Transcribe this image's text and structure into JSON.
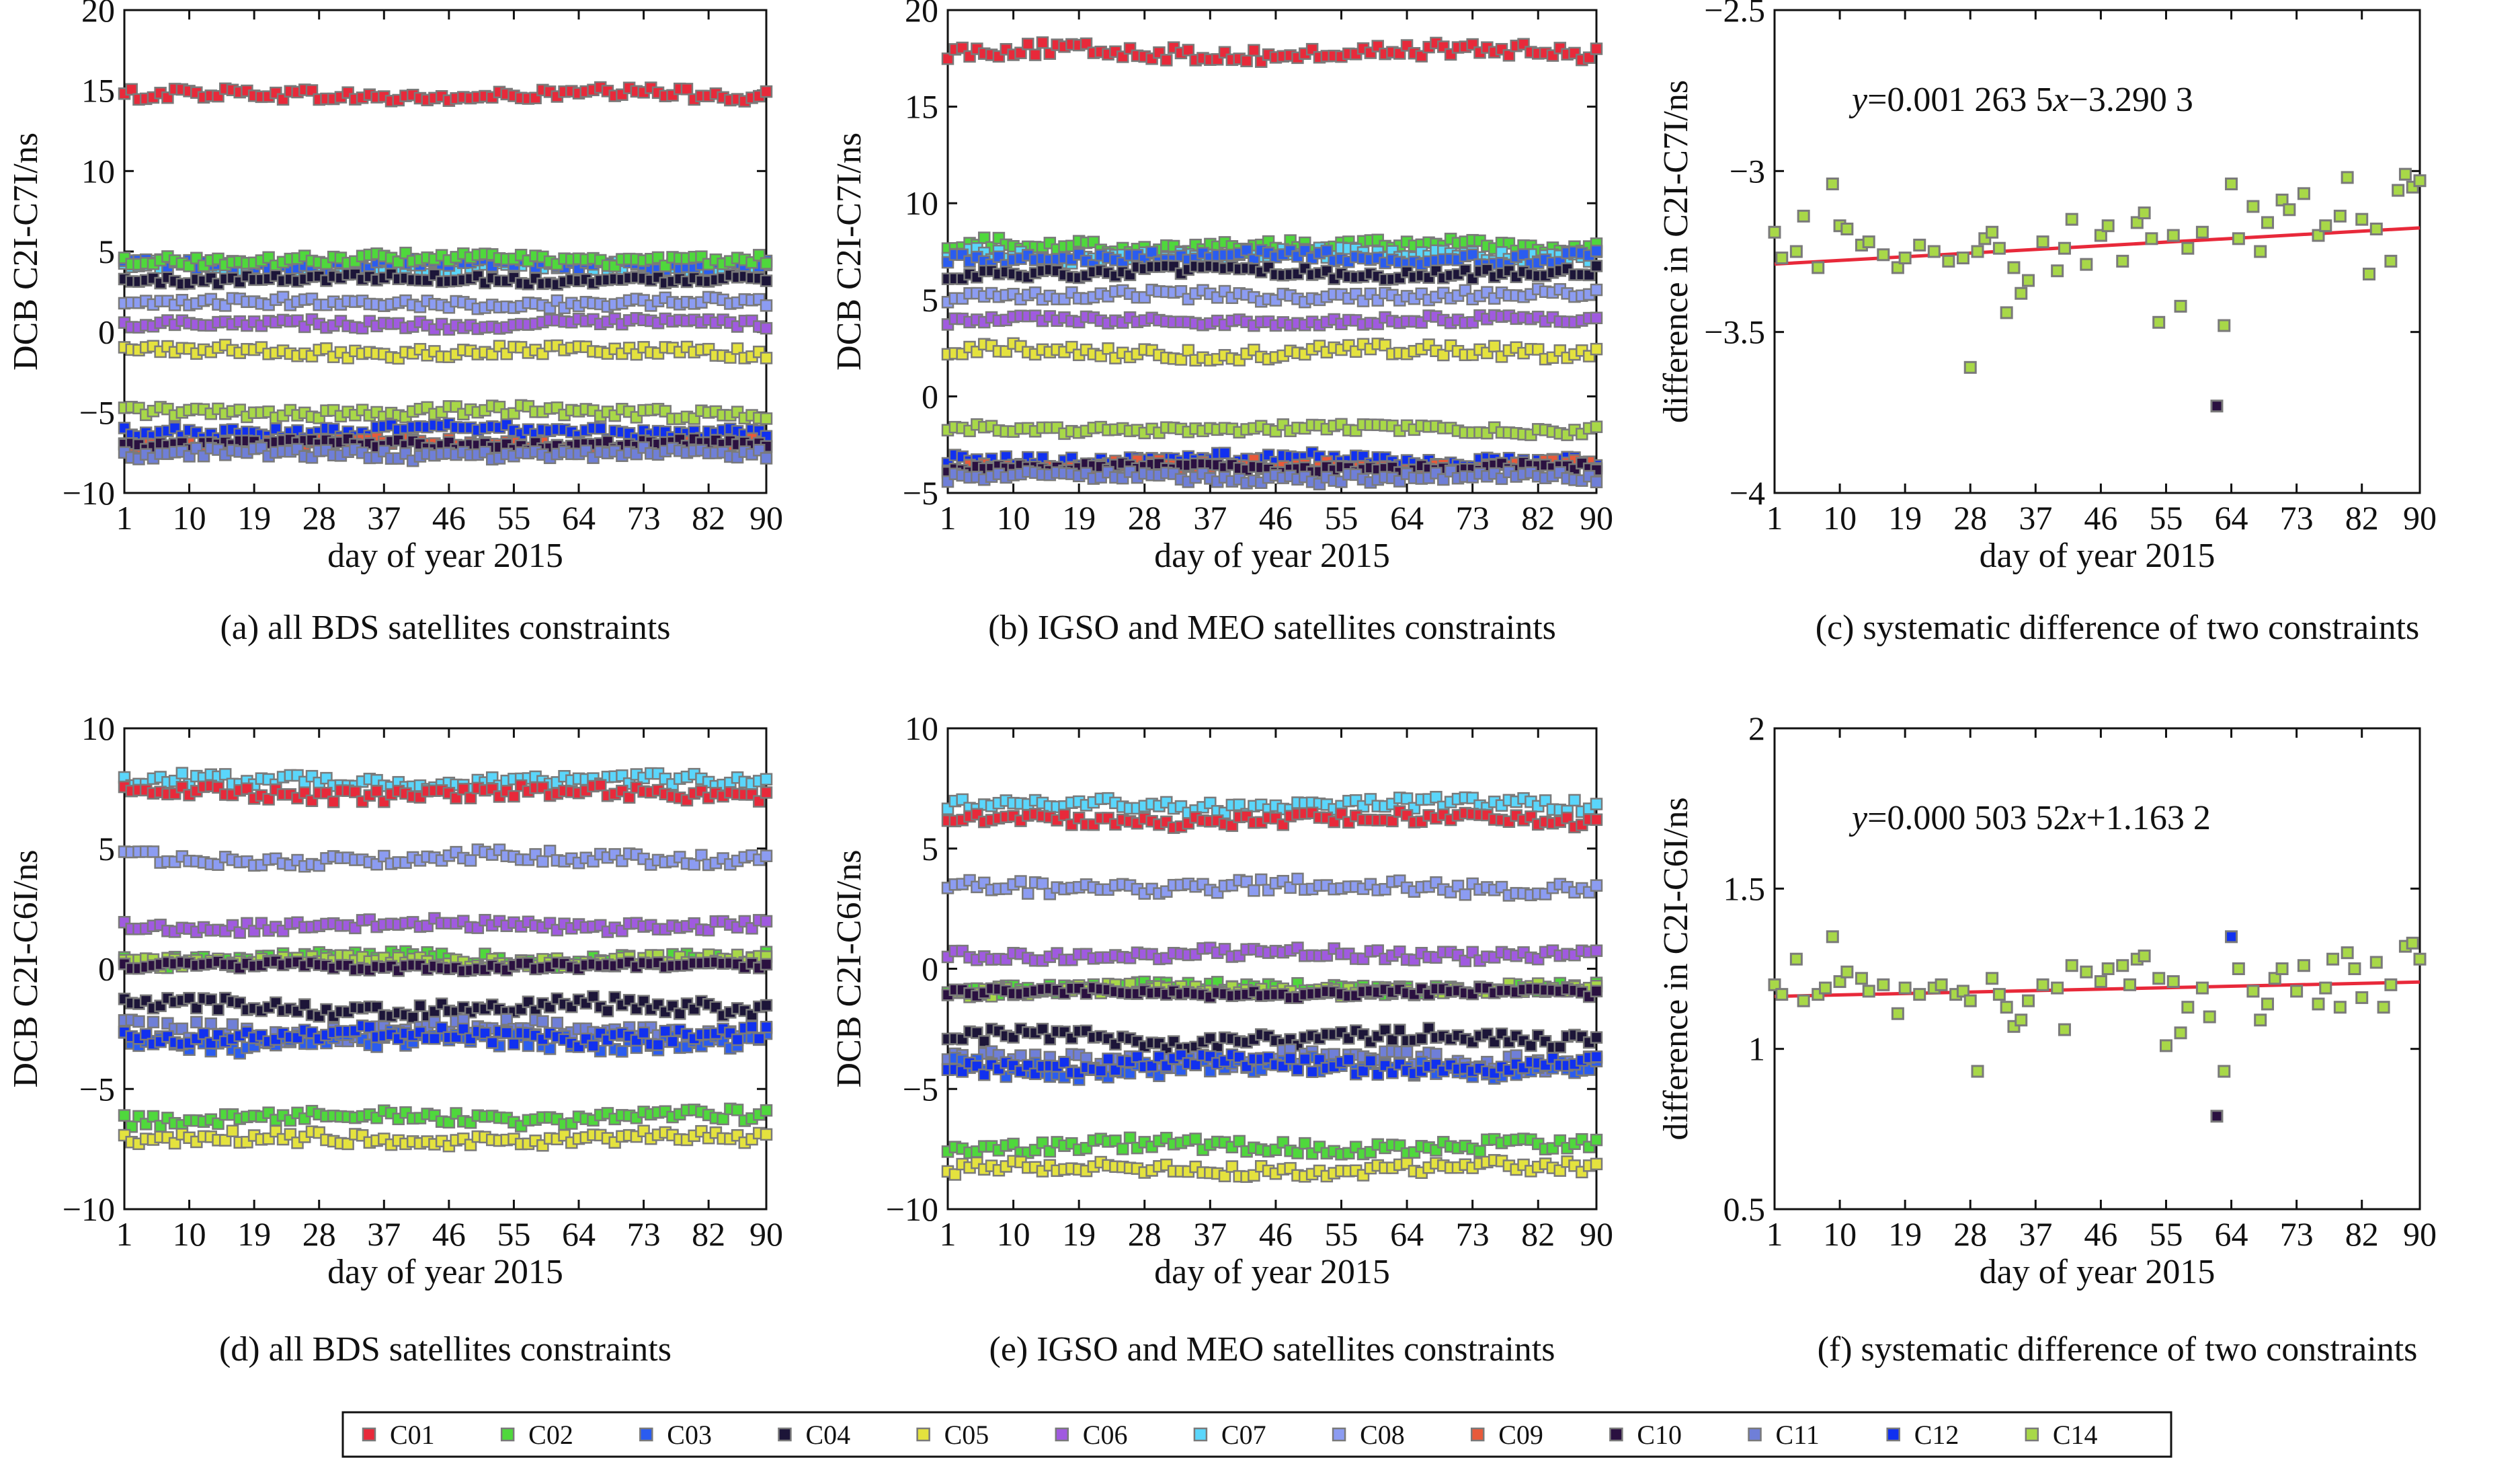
{
  "figure": {
    "legend": [
      {
        "name": "C01",
        "color": "#e8293a"
      },
      {
        "name": "C02",
        "color": "#4fd83c"
      },
      {
        "name": "C03",
        "color": "#2a5cf0"
      },
      {
        "name": "C04",
        "color": "#1c1538"
      },
      {
        "name": "C05",
        "color": "#e4e23e"
      },
      {
        "name": "C06",
        "color": "#a05ae0"
      },
      {
        "name": "C07",
        "color": "#5ad6fb"
      },
      {
        "name": "C08",
        "color": "#8c9cf2"
      },
      {
        "name": "C09",
        "color": "#e85a3a"
      },
      {
        "name": "C10",
        "color": "#2a1040"
      },
      {
        "name": "C11",
        "color": "#6f7fd8"
      },
      {
        "name": "C12",
        "color": "#1030f0"
      },
      {
        "name": "C14",
        "color": "#a8d848"
      }
    ],
    "trend_color": "#e8293a",
    "marker_edge_color": "#7a7a7a"
  },
  "chart_data": [
    {
      "id": "a",
      "type": "scatter",
      "caption": "(a) all BDS satellites constraints",
      "xlabel": "day of year 2015",
      "ylabel": "DCB C2I-C7I/ns",
      "xlim": [
        1,
        90
      ],
      "ylim": [
        -10,
        20
      ],
      "xticks": [
        "1",
        "10",
        "19",
        "28",
        "37",
        "46",
        "55",
        "64",
        "73",
        "82",
        "90"
      ],
      "yticks": [
        "20",
        "15",
        "10",
        "5",
        "0",
        "−5",
        "−10"
      ],
      "series": [
        {
          "name": "C01",
          "mean": 14.7,
          "noise": 0.35
        },
        {
          "name": "C07",
          "mean": 4.0,
          "noise": 0.35
        },
        {
          "name": "C03",
          "mean": 4.2,
          "noise": 0.3
        },
        {
          "name": "C02",
          "mean": 4.5,
          "noise": 0.3
        },
        {
          "name": "C04",
          "mean": 3.3,
          "noise": 0.25
        },
        {
          "name": "C08",
          "mean": 1.8,
          "noise": 0.25
        },
        {
          "name": "C06",
          "mean": 0.5,
          "noise": 0.25
        },
        {
          "name": "C05",
          "mean": -1.2,
          "noise": 0.3
        },
        {
          "name": "C14",
          "mean": -5.0,
          "noise": 0.3
        },
        {
          "name": "C12",
          "mean": -6.2,
          "noise": 0.35
        },
        {
          "name": "C09",
          "mean": -7.0,
          "noise": 0.3
        },
        {
          "name": "C10",
          "mean": -7.0,
          "noise": 0.25
        },
        {
          "name": "C11",
          "mean": -7.6,
          "noise": 0.3
        }
      ]
    },
    {
      "id": "b",
      "type": "scatter",
      "caption": "(b) IGSO and MEO satellites constraints",
      "xlabel": "day of year 2015",
      "ylabel": "DCB C2I-C7I/ns",
      "xlim": [
        1,
        90
      ],
      "ylim": [
        -5,
        20
      ],
      "xticks": [
        "1",
        "10",
        "19",
        "28",
        "37",
        "46",
        "55",
        "64",
        "73",
        "82",
        "90"
      ],
      "yticks": [
        "20",
        "15",
        "10",
        "5",
        "0",
        "−5"
      ],
      "series": [
        {
          "name": "C01",
          "mean": 17.8,
          "noise": 0.35
        },
        {
          "name": "C02",
          "mean": 7.8,
          "noise": 0.3
        },
        {
          "name": "C07",
          "mean": 7.3,
          "noise": 0.3
        },
        {
          "name": "C03",
          "mean": 7.2,
          "noise": 0.3
        },
        {
          "name": "C04",
          "mean": 6.4,
          "noise": 0.25
        },
        {
          "name": "C08",
          "mean": 5.2,
          "noise": 0.25
        },
        {
          "name": "C06",
          "mean": 3.9,
          "noise": 0.2
        },
        {
          "name": "C05",
          "mean": 2.3,
          "noise": 0.3
        },
        {
          "name": "C14",
          "mean": -1.7,
          "noise": 0.2
        },
        {
          "name": "C12",
          "mean": -3.3,
          "noise": 0.3
        },
        {
          "name": "C09",
          "mean": -3.6,
          "noise": 0.25
        },
        {
          "name": "C10",
          "mean": -3.7,
          "noise": 0.2
        },
        {
          "name": "C11",
          "mean": -4.2,
          "noise": 0.25
        }
      ]
    },
    {
      "id": "c",
      "type": "scatter",
      "caption": "(c) systematic difference of two constraints",
      "xlabel": "day of year 2015",
      "ylabel": "difference in C2I-C7I/ns",
      "equation": {
        "lead": "y",
        "text1": "=0.001 263 5",
        "mid": "x",
        "text2": "−3.290 3"
      },
      "xlim": [
        1,
        90
      ],
      "ylim": [
        -4,
        -2.5
      ],
      "xticks": [
        "1",
        "10",
        "19",
        "28",
        "37",
        "46",
        "55",
        "64",
        "73",
        "82",
        "90"
      ],
      "yticks": [
        "−2.5",
        "−3",
        "−3.5",
        "−4"
      ],
      "trend": {
        "slope": 0.0012635,
        "intercept": -3.2903
      },
      "points": [
        [
          1,
          -3.19
        ],
        [
          2,
          -3.27
        ],
        [
          4,
          -3.25
        ],
        [
          5,
          -3.14
        ],
        [
          7,
          -3.3
        ],
        [
          9,
          -3.04
        ],
        [
          10,
          -3.17
        ],
        [
          11,
          -3.18
        ],
        [
          13,
          -3.23
        ],
        [
          14,
          -3.22
        ],
        [
          16,
          -3.26
        ],
        [
          18,
          -3.3
        ],
        [
          19,
          -3.27
        ],
        [
          21,
          -3.23
        ],
        [
          23,
          -3.25
        ],
        [
          25,
          -3.28
        ],
        [
          27,
          -3.27
        ],
        [
          28,
          -3.61
        ],
        [
          29,
          -3.25
        ],
        [
          30,
          -3.21
        ],
        [
          31,
          -3.19
        ],
        [
          32,
          -3.24
        ],
        [
          33,
          -3.44
        ],
        [
          34,
          -3.3
        ],
        [
          35,
          -3.38
        ],
        [
          36,
          -3.34
        ],
        [
          38,
          -3.22
        ],
        [
          40,
          -3.31
        ],
        [
          41,
          -3.24
        ],
        [
          42,
          -3.15
        ],
        [
          44,
          -3.29
        ],
        [
          46,
          -3.2
        ],
        [
          47,
          -3.17
        ],
        [
          49,
          -3.28
        ],
        [
          51,
          -3.16
        ],
        [
          52,
          -3.13
        ],
        [
          53,
          -3.21
        ],
        [
          54,
          -3.47
        ],
        [
          56,
          -3.2
        ],
        [
          57,
          -3.42
        ],
        [
          58,
          -3.24
        ],
        [
          60,
          -3.19
        ],
        [
          62,
          -3.73
        ],
        [
          63,
          -3.48
        ],
        [
          64,
          -3.04
        ],
        [
          65,
          -3.21
        ],
        [
          67,
          -3.11
        ],
        [
          68,
          -3.25
        ],
        [
          69,
          -3.16
        ],
        [
          71,
          -3.09
        ],
        [
          72,
          -3.12
        ],
        [
          74,
          -3.07
        ],
        [
          76,
          -3.2
        ],
        [
          77,
          -3.17
        ],
        [
          79,
          -3.14
        ],
        [
          80,
          -3.02
        ],
        [
          82,
          -3.15
        ],
        [
          83,
          -3.32
        ],
        [
          84,
          -3.18
        ],
        [
          86,
          -3.28
        ],
        [
          87,
          -3.06
        ],
        [
          88,
          -3.01
        ],
        [
          89,
          -3.05
        ],
        [
          90,
          -3.03
        ]
      ],
      "outliers": [
        [
          62,
          -3.73
        ]
      ]
    },
    {
      "id": "d",
      "type": "scatter",
      "caption": "(d) all BDS satellites constraints",
      "xlabel": "day of year 2015",
      "ylabel": "DCB C2I-C6I/ns",
      "xlim": [
        1,
        90
      ],
      "ylim": [
        -10,
        10
      ],
      "xticks": [
        "1",
        "10",
        "19",
        "28",
        "37",
        "46",
        "55",
        "64",
        "73",
        "82",
        "90"
      ],
      "yticks": [
        "10",
        "5",
        "0",
        "−5",
        "−10"
      ],
      "series": [
        {
          "name": "C07",
          "mean": 7.8,
          "noise": 0.25
        },
        {
          "name": "C01",
          "mean": 7.3,
          "noise": 0.25
        },
        {
          "name": "C08",
          "mean": 4.6,
          "noise": 0.25
        },
        {
          "name": "C06",
          "mean": 1.8,
          "noise": 0.2
        },
        {
          "name": "C02",
          "mean": 0.4,
          "noise": 0.25
        },
        {
          "name": "C14",
          "mean": 0.3,
          "noise": 0.2
        },
        {
          "name": "C10",
          "mean": 0.1,
          "noise": 0.15
        },
        {
          "name": "C04",
          "mean": -1.6,
          "noise": 0.3
        },
        {
          "name": "C11",
          "mean": -2.6,
          "noise": 0.35
        },
        {
          "name": "C03",
          "mean": -3.0,
          "noise": 0.35
        },
        {
          "name": "C12",
          "mean": -2.8,
          "noise": 0.3
        },
        {
          "name": "C02",
          "mean": -6.2,
          "noise": 0.25
        },
        {
          "name": "C05",
          "mean": -7.1,
          "noise": 0.25
        }
      ]
    },
    {
      "id": "e",
      "type": "scatter",
      "caption": "(e) IGSO and MEO satellites constraints",
      "xlabel": "day of year 2015",
      "ylabel": "DCB C2I-C6I/ns",
      "xlim": [
        1,
        90
      ],
      "ylim": [
        -10,
        10
      ],
      "xticks": [
        "1",
        "10",
        "19",
        "28",
        "37",
        "46",
        "55",
        "64",
        "73",
        "82",
        "90"
      ],
      "yticks": [
        "10",
        "5",
        "0",
        "−5",
        "−10"
      ],
      "series": [
        {
          "name": "C07",
          "mean": 6.8,
          "noise": 0.25
        },
        {
          "name": "C01",
          "mean": 6.2,
          "noise": 0.25
        },
        {
          "name": "C08",
          "mean": 3.4,
          "noise": 0.25
        },
        {
          "name": "C06",
          "mean": 0.6,
          "noise": 0.2
        },
        {
          "name": "C02",
          "mean": -0.8,
          "noise": 0.2
        },
        {
          "name": "C14",
          "mean": -0.9,
          "noise": 0.2
        },
        {
          "name": "C10",
          "mean": -1.0,
          "noise": 0.15
        },
        {
          "name": "C04",
          "mean": -2.9,
          "noise": 0.3
        },
        {
          "name": "C11",
          "mean": -3.8,
          "noise": 0.35
        },
        {
          "name": "C03",
          "mean": -4.1,
          "noise": 0.35
        },
        {
          "name": "C12",
          "mean": -4.0,
          "noise": 0.3
        },
        {
          "name": "C02",
          "mean": -7.4,
          "noise": 0.25
        },
        {
          "name": "C05",
          "mean": -8.3,
          "noise": 0.25
        }
      ]
    },
    {
      "id": "f",
      "type": "scatter",
      "caption": "(f) systematic difference of two constraints",
      "xlabel": "day of year 2015",
      "ylabel": "difference in C2I-C6I/ns",
      "equation": {
        "lead": "y",
        "text1": "=0.000 503 52",
        "mid": "x",
        "text2": "+1.163 2"
      },
      "xlim": [
        1,
        90
      ],
      "ylim": [
        0.5,
        2
      ],
      "xticks": [
        "1",
        "10",
        "19",
        "28",
        "37",
        "46",
        "55",
        "64",
        "73",
        "82",
        "90"
      ],
      "yticks": [
        "2",
        "1.5",
        "1",
        "0.5"
      ],
      "trend": {
        "slope": 0.00050352,
        "intercept": 1.1632
      },
      "points": [
        [
          1,
          1.2
        ],
        [
          2,
          1.17
        ],
        [
          4,
          1.28
        ],
        [
          5,
          1.15
        ],
        [
          7,
          1.17
        ],
        [
          8,
          1.19
        ],
        [
          9,
          1.35
        ],
        [
          10,
          1.21
        ],
        [
          11,
          1.24
        ],
        [
          13,
          1.22
        ],
        [
          14,
          1.18
        ],
        [
          16,
          1.2
        ],
        [
          18,
          1.11
        ],
        [
          19,
          1.19
        ],
        [
          21,
          1.17
        ],
        [
          23,
          1.19
        ],
        [
          24,
          1.2
        ],
        [
          26,
          1.17
        ],
        [
          27,
          1.18
        ],
        [
          28,
          1.15
        ],
        [
          29,
          0.93
        ],
        [
          31,
          1.22
        ],
        [
          32,
          1.17
        ],
        [
          33,
          1.13
        ],
        [
          34,
          1.07
        ],
        [
          35,
          1.09
        ],
        [
          36,
          1.15
        ],
        [
          38,
          1.2
        ],
        [
          40,
          1.19
        ],
        [
          41,
          1.06
        ],
        [
          42,
          1.26
        ],
        [
          44,
          1.24
        ],
        [
          46,
          1.21
        ],
        [
          47,
          1.25
        ],
        [
          49,
          1.26
        ],
        [
          50,
          1.2
        ],
        [
          51,
          1.28
        ],
        [
          52,
          1.29
        ],
        [
          54,
          1.22
        ],
        [
          55,
          1.01
        ],
        [
          56,
          1.21
        ],
        [
          57,
          1.05
        ],
        [
          58,
          1.13
        ],
        [
          60,
          1.19
        ],
        [
          61,
          1.1
        ],
        [
          62,
          0.79
        ],
        [
          63,
          0.93
        ],
        [
          64,
          1.35
        ],
        [
          65,
          1.25
        ],
        [
          67,
          1.18
        ],
        [
          68,
          1.09
        ],
        [
          69,
          1.14
        ],
        [
          70,
          1.22
        ],
        [
          71,
          1.25
        ],
        [
          73,
          1.18
        ],
        [
          74,
          1.26
        ],
        [
          76,
          1.14
        ],
        [
          77,
          1.19
        ],
        [
          78,
          1.28
        ],
        [
          79,
          1.13
        ],
        [
          80,
          1.3
        ],
        [
          81,
          1.25
        ],
        [
          82,
          1.16
        ],
        [
          84,
          1.27
        ],
        [
          85,
          1.13
        ],
        [
          86,
          1.2
        ],
        [
          88,
          1.32
        ],
        [
          89,
          1.33
        ],
        [
          90,
          1.28
        ]
      ],
      "outliers": [
        [
          62,
          0.79
        ],
        [
          64,
          1.35
        ]
      ]
    }
  ]
}
